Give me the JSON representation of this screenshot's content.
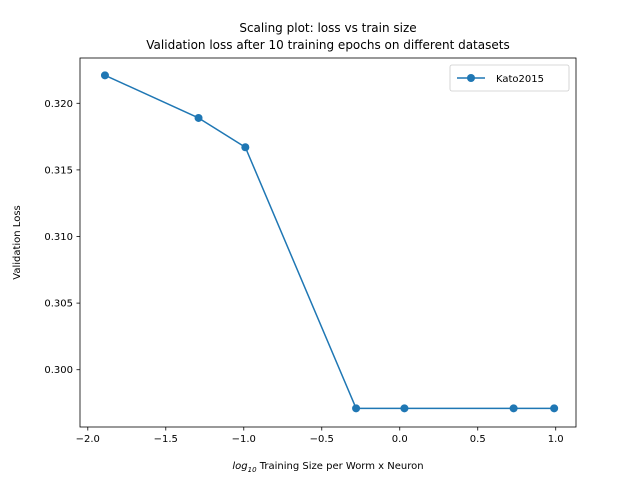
{
  "chart_data": {
    "type": "line",
    "title": "Scaling plot: loss vs train size",
    "subtitle": "Validation loss after 10 training epochs on different datasets",
    "xlabel_prefix": "log",
    "xlabel_subscript": "10",
    "xlabel_rest": " Training Size per Worm x Neuron",
    "ylabel": "Validation Loss",
    "xlim": [
      -2.05,
      1.13
    ],
    "ylim": [
      0.2957,
      0.3234
    ],
    "x_ticks": [
      -2.0,
      -1.5,
      -1.0,
      -0.5,
      0.0,
      0.5,
      1.0
    ],
    "x_tick_labels": [
      "−2.0",
      "−1.5",
      "−1.0",
      "−0.5",
      "0.0",
      "0.5",
      "1.0"
    ],
    "y_ticks": [
      0.3,
      0.305,
      0.31,
      0.315,
      0.32
    ],
    "y_tick_labels": [
      "0.300",
      "0.305",
      "0.310",
      "0.315",
      "0.320"
    ],
    "grid": false,
    "legend_position": "top-right",
    "series": [
      {
        "name": "Kato2015",
        "color": "#1f77b4",
        "marker": "circle",
        "x": [
          -1.89,
          -1.29,
          -0.99,
          -0.28,
          0.03,
          0.73,
          0.99
        ],
        "y": [
          0.3221,
          0.3189,
          0.3167,
          0.2971,
          0.2971,
          0.2971,
          0.2971
        ]
      }
    ]
  }
}
